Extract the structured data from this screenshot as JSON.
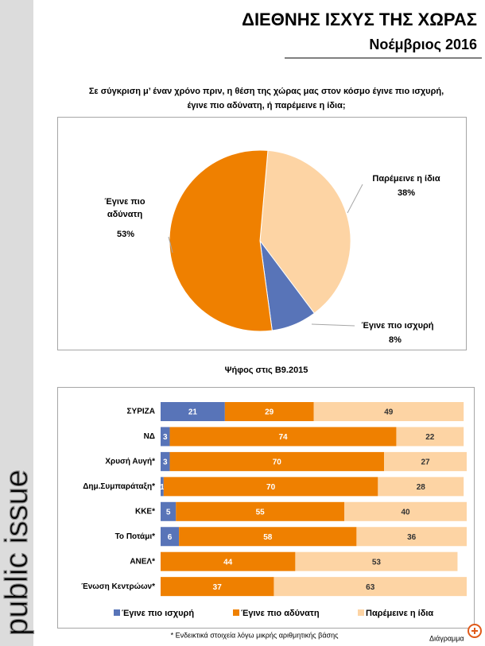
{
  "header": {
    "title": "ΔΙΕΘΝΗΣ ΙΣΧΥΣ ΤΗΣ ΧΩΡΑΣ",
    "subtitle": "Νοέμβριος 2016"
  },
  "brand": "public issue",
  "chart_data": [
    {
      "type": "pie",
      "title": [
        "Σε σύγκριση μ’ έναν χρόνο πριν, η θέση της χώρας μας στον κόσμο έγινε πιο ισχυρή,",
        "έγινε πιο αδύνατη, ή παρέμεινε η ίδια;"
      ],
      "categories": [
        "Παρέμεινε η ίδια",
        "Έγινε πιο ισχυρή",
        "Έγινε πιο αδύνατη"
      ],
      "values": [
        38,
        8,
        53
      ],
      "value_labels": [
        "38%",
        "8%",
        "53%"
      ],
      "colors": [
        "#fdd4a4",
        "#5874b8",
        "#ef8000"
      ]
    },
    {
      "type": "bar",
      "orientation": "horizontal",
      "stacked": true,
      "title": "Ψήφος στις Β9.2015",
      "categories": [
        "ΣΥΡΙΖΑ",
        "ΝΔ",
        "Χρυσή Αυγή*",
        "Δημ.Συμπαράταξη*",
        "ΚΚΕ*",
        "Το Ποτάμι*",
        "ΑΝΕΛ*",
        "Ένωση Κεντρώων*"
      ],
      "series": [
        {
          "name": "Έγινε πιο ισχυρή",
          "color": "#5874b8",
          "values": [
            21,
            3,
            3,
            1,
            5,
            6,
            null,
            null
          ]
        },
        {
          "name": "Έγινε πιο αδύνατη",
          "color": "#ef8000",
          "values": [
            29,
            74,
            70,
            70,
            55,
            58,
            44,
            37
          ]
        },
        {
          "name": "Παρέμεινε η ίδια",
          "color": "#fdd4a4",
          "values": [
            49,
            22,
            27,
            28,
            40,
            36,
            53,
            63
          ]
        }
      ],
      "legend": "bottom"
    }
  ],
  "footnote": "* Ενδεικτικά στοιχεία λόγω μικρής αριθμητικής βάσης",
  "corner_label": "Διάγραμμα"
}
